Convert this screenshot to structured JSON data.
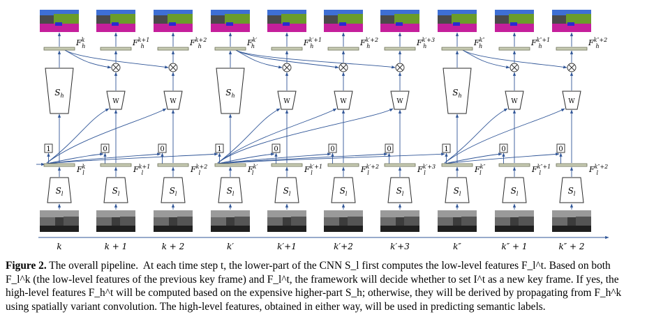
{
  "diagram": {
    "frames": [
      {
        "time": "k",
        "key": true,
        "decision": "1",
        "low_feature": "F_l^k",
        "high_feature": "F_h^k",
        "low_net": "S_l",
        "high_net": "S_h"
      },
      {
        "time": "k + 1",
        "key": false,
        "decision": "0",
        "low_feature": "F_l^{k+1}",
        "high_feature": "F_h^{k+1}",
        "low_net": "S_l",
        "weight_net": "W"
      },
      {
        "time": "k + 2",
        "key": false,
        "decision": "0",
        "low_feature": "F_l^{k+2}",
        "high_feature": "F_h^{k+2}",
        "low_net": "S_l",
        "weight_net": "W"
      },
      {
        "time": "k′",
        "key": true,
        "decision": "1",
        "low_feature": "F_l^{k′}",
        "high_feature": "F_h^{k′}",
        "low_net": "S_l",
        "high_net": "S_h"
      },
      {
        "time": "k′+1",
        "key": false,
        "decision": "0",
        "low_feature": "F_l^{k′+1}",
        "high_feature": "F_h^{k′+1}",
        "low_net": "S_l",
        "weight_net": "W"
      },
      {
        "time": "k′+2",
        "key": false,
        "decision": "0",
        "low_feature": "F_l^{k′+2}",
        "high_feature": "F_h^{k′+2}",
        "low_net": "S_l",
        "weight_net": "W"
      },
      {
        "time": "k′+3",
        "key": false,
        "decision": "0",
        "low_feature": "F_l^{k′+3}",
        "high_feature": "F_h^{k′+3}",
        "low_net": "S_l",
        "weight_net": "W"
      },
      {
        "time": "k″",
        "key": true,
        "decision": "1",
        "low_feature": "F_l^{k″}",
        "high_feature": "F_h^{k″}",
        "low_net": "S_l",
        "high_net": "S_h"
      },
      {
        "time": "k″ + 1",
        "key": false,
        "decision": "0",
        "low_feature": "F_l^{k″+1}",
        "high_feature": "F_h^{k″+1}",
        "low_net": "S_l",
        "weight_net": "W"
      },
      {
        "time": "k″ + 2",
        "key": false,
        "decision": "0",
        "low_feature": "F_l^{k″+2}",
        "high_feature": "F_h^{k″+2}",
        "low_net": "S_l",
        "weight_net": "W"
      }
    ],
    "colors": {
      "arrow": "#2f5597",
      "feature_bar": "#c8ccb4",
      "feature_bar_border": "#6d7058",
      "net_border": "#2a2a2a",
      "seg_road": "#c51f9b",
      "seg_sky": "#3e6fd4",
      "seg_tree": "#6a9c2a",
      "seg_building": "#4a4a4a",
      "seg_car": "#2a2ad0"
    }
  },
  "caption": {
    "label": "Figure 2.",
    "lines": [
      " The overall pipeline.  At each time step t, the lower-part of the CNN S_l first computes the low-level features F_l^t. Based on both",
      "F_l^k (the low-level features of the previous key frame) and F_l^t, the framework will decide whether to set I^t as a new key frame. If yes, the",
      "high-level features F_h^t will be computed based on the expensive higher-part S_h; otherwise, they will be derived by propagating from F_h^k",
      "using spatially variant convolution. The high-level features, obtained in either way, will be used in predicting semantic labels."
    ]
  }
}
